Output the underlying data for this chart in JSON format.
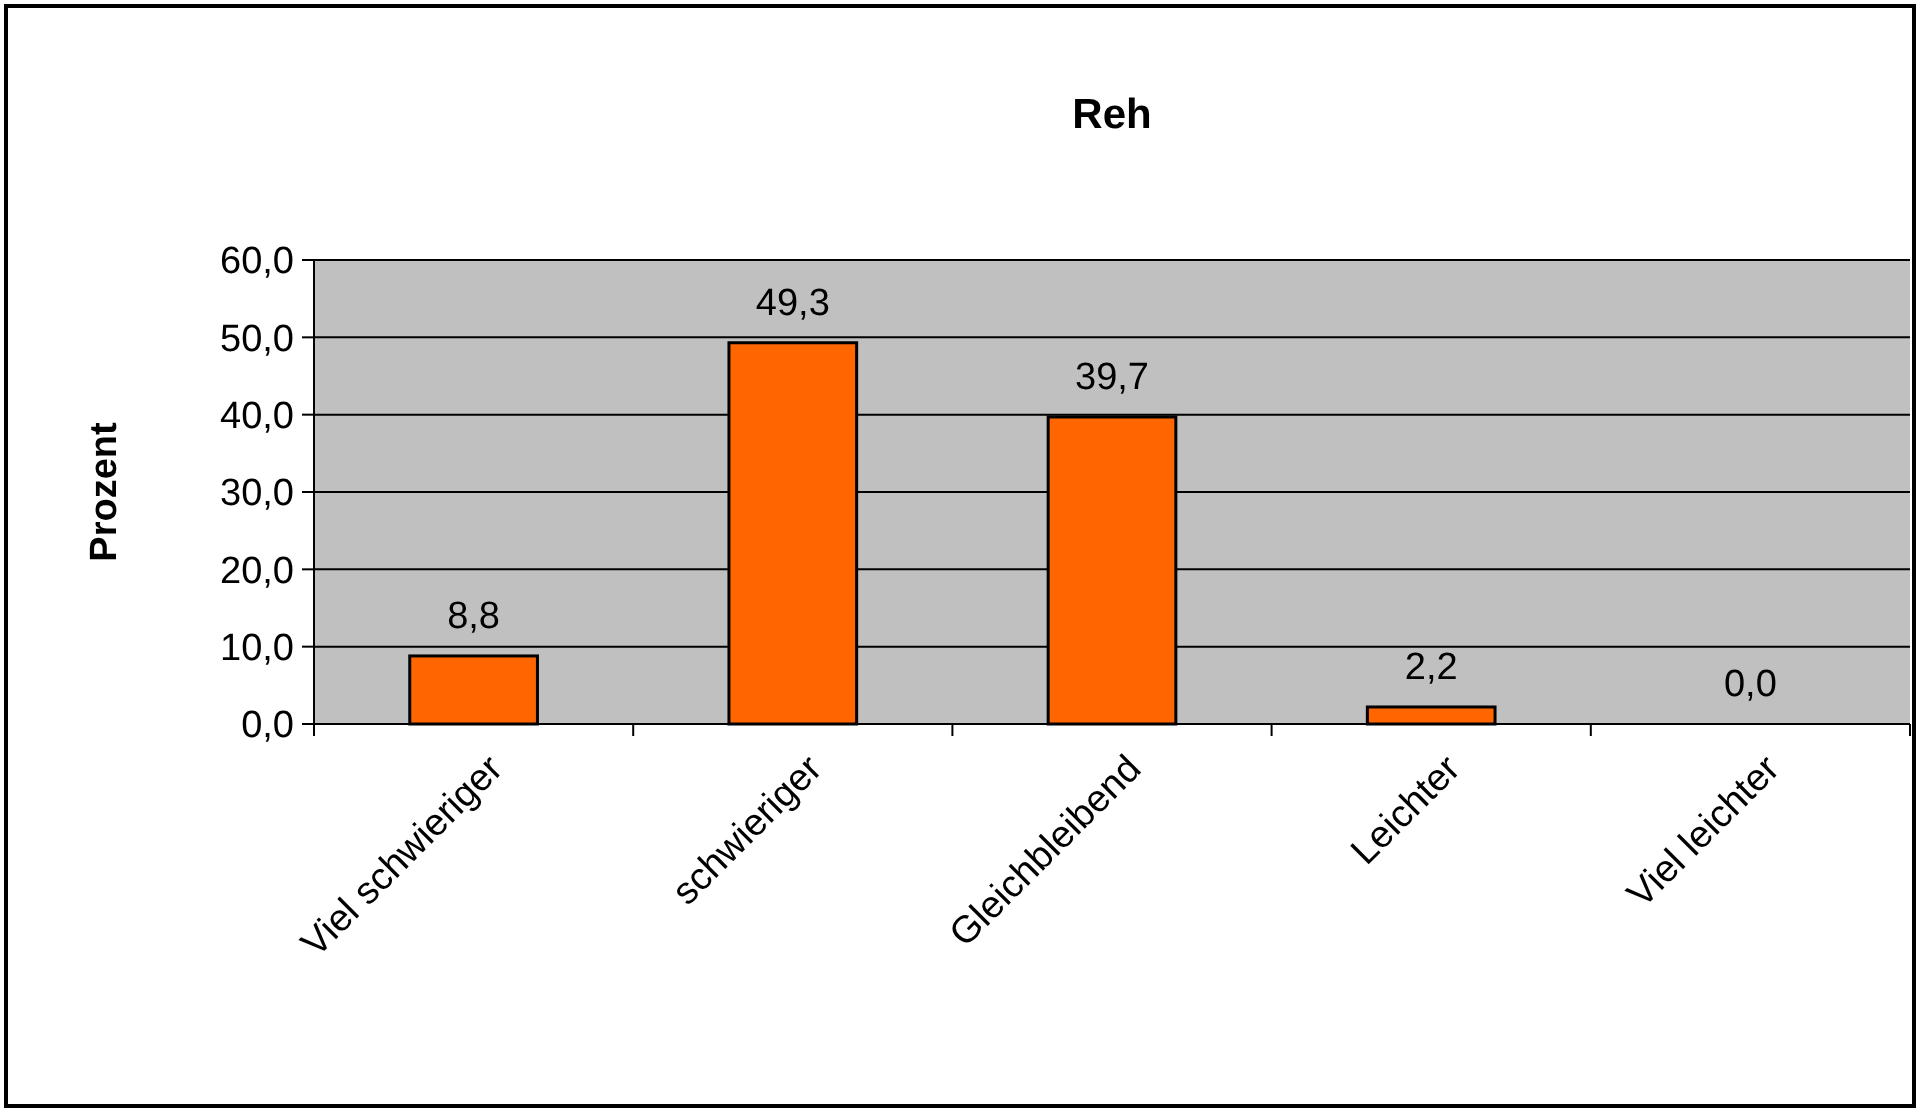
{
  "chart_data": {
    "type": "bar",
    "title": "Reh",
    "ylabel": "Prozent",
    "categories": [
      "Viel schwieriger",
      "schwieriger",
      "Gleichbleibend",
      "Leichter",
      "Viel leichter"
    ],
    "values": [
      8.8,
      49.3,
      39.7,
      2.2,
      0.0
    ],
    "value_labels": [
      "8,8",
      "49,3",
      "39,7",
      "2,2",
      "0,0"
    ],
    "color": "#ff6600",
    "ylim": [
      0,
      60
    ],
    "yticks": [
      {
        "value": 0,
        "label": "0,0"
      },
      {
        "value": 10,
        "label": "10,0"
      },
      {
        "value": 20,
        "label": "20,0"
      },
      {
        "value": 30,
        "label": "30,0"
      },
      {
        "value": 40,
        "label": "40,0"
      },
      {
        "value": 50,
        "label": "50,0"
      },
      {
        "value": 60,
        "label": "60,0"
      }
    ],
    "grid": "y"
  }
}
